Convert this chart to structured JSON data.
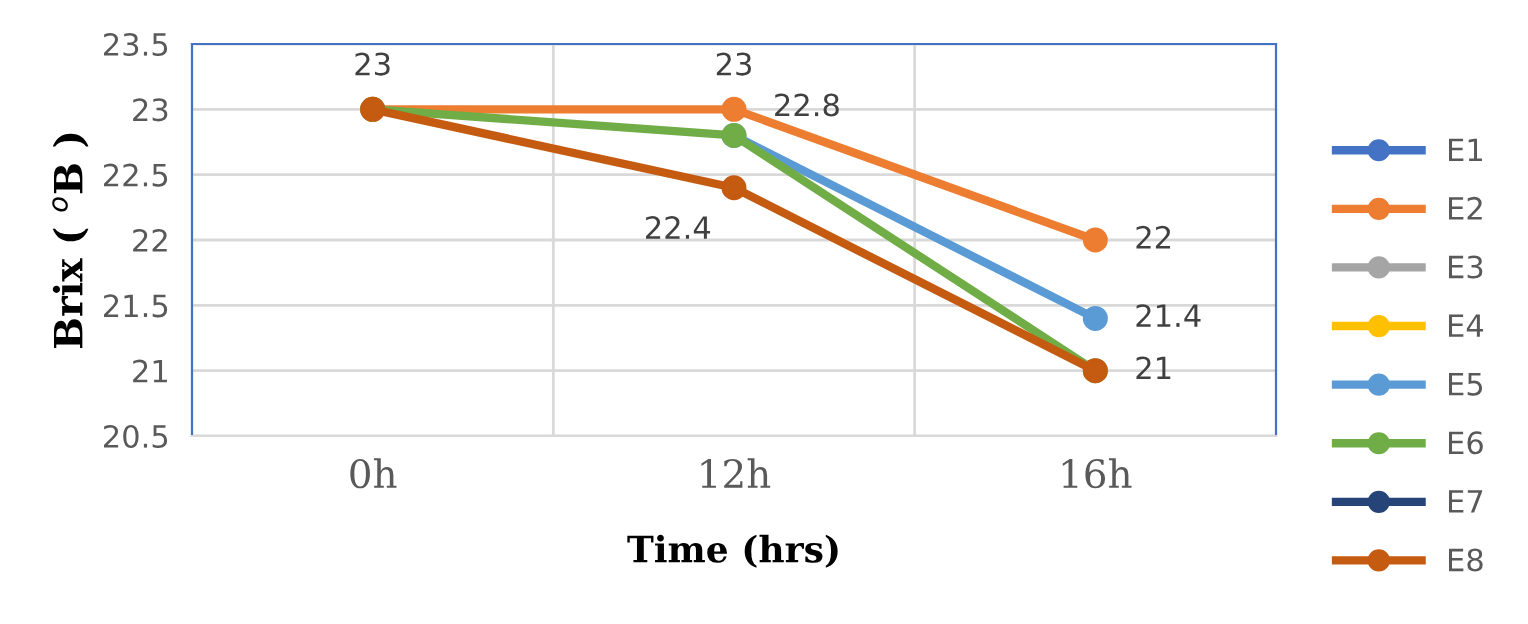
{
  "chart_data": {
    "type": "line",
    "xlabel": "Time (hrs)",
    "ylabel": "Brix ( $^{o}$B )",
    "categories": [
      "0h",
      "12h",
      "16h"
    ],
    "series": [
      {
        "name": "E1",
        "color": "#4472c4",
        "values": [
          null,
          null,
          null
        ]
      },
      {
        "name": "E2",
        "color": "#ed7d31",
        "values": [
          23,
          23,
          22
        ],
        "value_labels": [
          "23",
          "23",
          "22"
        ]
      },
      {
        "name": "E3",
        "color": "#a5a5a5",
        "values": [
          null,
          null,
          null
        ]
      },
      {
        "name": "E4",
        "color": "#ffc000",
        "values": [
          null,
          null,
          null
        ]
      },
      {
        "name": "E5",
        "color": "#5b9bd5",
        "values": [
          null,
          22.8,
          21.4
        ],
        "value_labels": [
          null,
          "22.8",
          "21.4"
        ]
      },
      {
        "name": "E6",
        "color": "#70ad47",
        "values": [
          23,
          22.8,
          21
        ]
      },
      {
        "name": "E7",
        "color": "#264478",
        "values": [
          null,
          null,
          null
        ]
      },
      {
        "name": "E8",
        "color": "#c55a11",
        "values": [
          23,
          22.4,
          21
        ],
        "value_labels": [
          null,
          "22.4",
          "21"
        ]
      }
    ],
    "ylim": [
      20.5,
      23.5
    ],
    "yticks": [
      20.5,
      21,
      21.5,
      22,
      22.5,
      23,
      23.5
    ],
    "grid": true,
    "legend": "right",
    "marker": "circle",
    "line_style": "solid"
  }
}
